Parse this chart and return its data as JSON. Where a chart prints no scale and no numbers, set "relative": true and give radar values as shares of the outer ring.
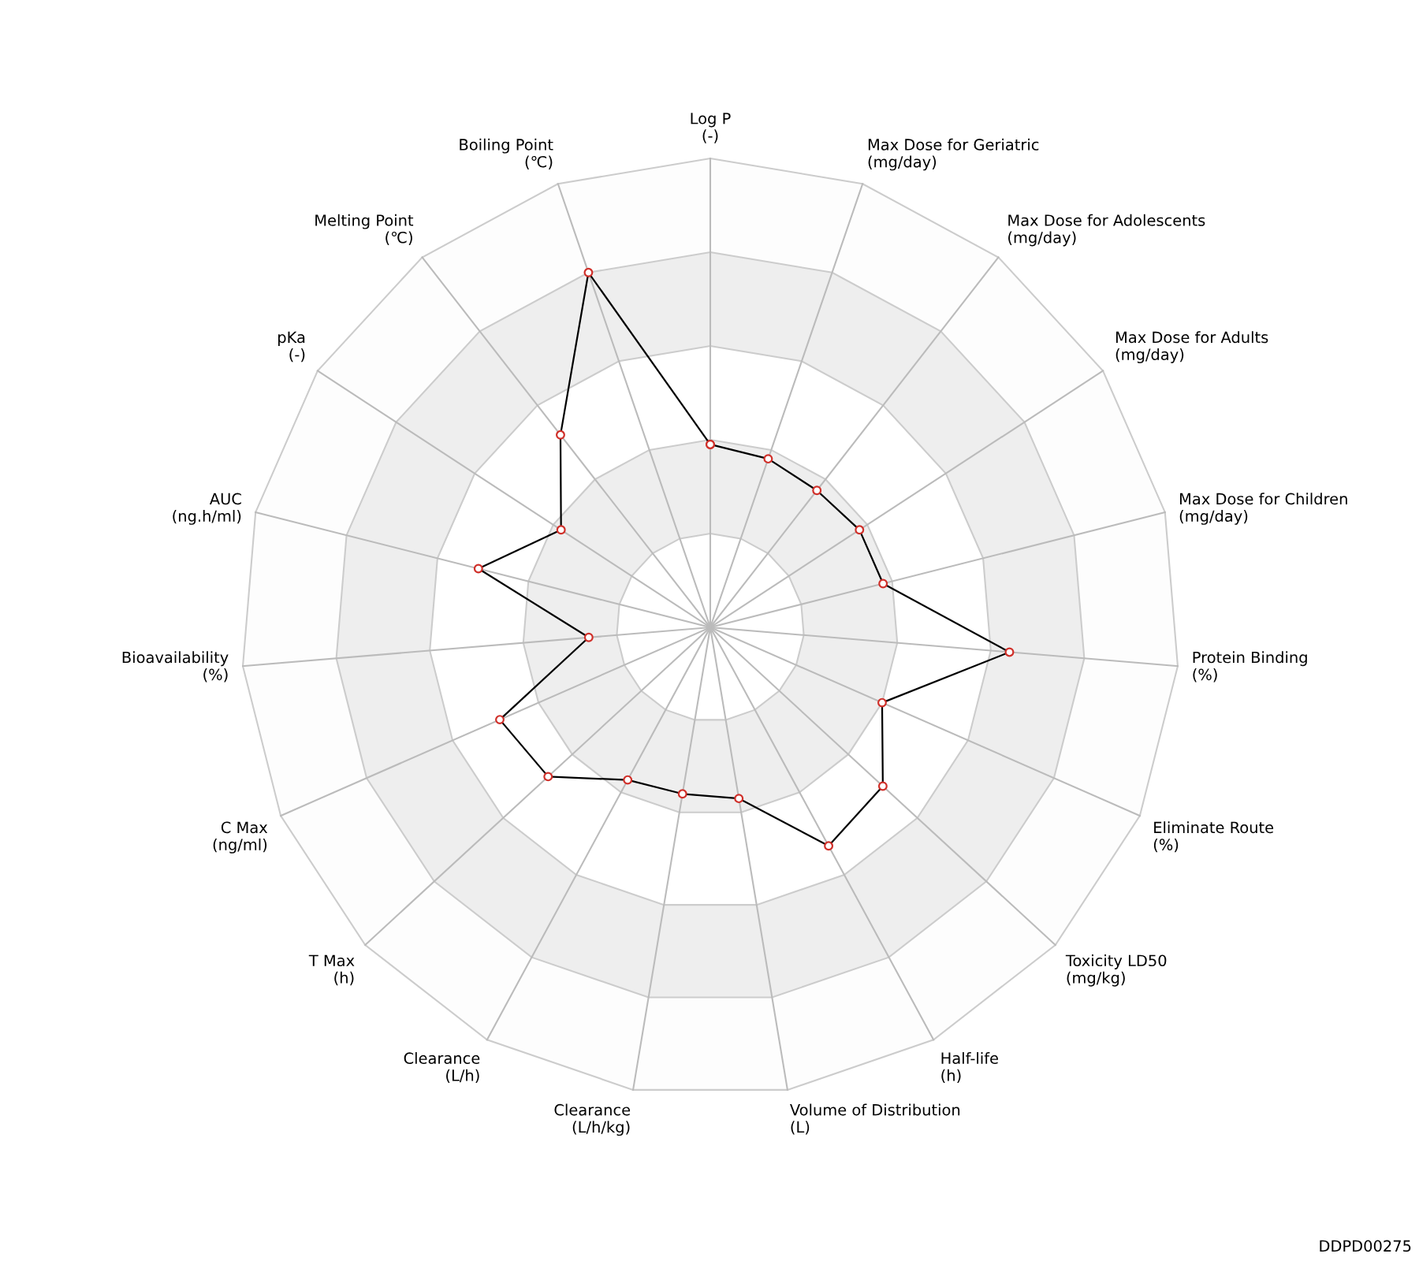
{
  "chart_data": {
    "type": "radar",
    "relative": true,
    "marker": "circle",
    "grid": true,
    "categories": [
      "Log P\n(-)",
      "Max Dose for Geriatric\n(mg/day)",
      "Max Dose for Adolescents\n(mg/day)",
      "Max Dose for Adults\n(mg/day)",
      "Max Dose for Children\n(mg/day)",
      "Protein Binding\n(%)",
      "Eliminate Route\n(%)",
      "Toxicity LD50\n(mg/kg)",
      "Half-life\n(h)",
      "Volume of Distribution\n(L)",
      "Clearance\n(L/h/kg)",
      "Clearance\n(L/h)",
      "T Max\n(h)",
      "C Max\n(ng/ml)",
      "Bioavailability\n(%)",
      "AUC\n(ng.h/ml)",
      "pKa\n(-)",
      "Melting Point\n(℃)",
      "Boiling Point\n(℃)"
    ],
    "series": [
      {
        "color": "#000000",
        "values": [
          0.39,
          0.38,
          0.37,
          0.38,
          0.38,
          0.64,
          0.4,
          0.5,
          0.53,
          0.37,
          0.36,
          0.37,
          0.47,
          0.49,
          0.26,
          0.51,
          0.38,
          0.52,
          0.8
        ]
      }
    ],
    "annotations": [
      "DDPD00275"
    ]
  }
}
